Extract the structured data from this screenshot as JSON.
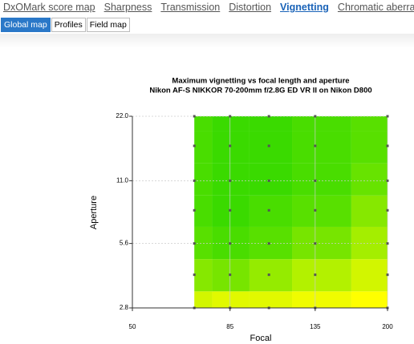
{
  "nav": {
    "tabs": [
      "DxOMark score map",
      "Sharpness",
      "Transmission",
      "Distortion",
      "Vignetting",
      "Chromatic aberration"
    ],
    "active_tab": 4,
    "subtabs": [
      "Global map",
      "Profiles",
      "Field map"
    ],
    "active_subtab": 0
  },
  "chart_data": {
    "type": "heatmap",
    "title": "Maximum vignetting vs focal length and aperture",
    "subtitle": "Nikon AF-S NIKKOR 70-200mm f/2.8G ED VR II on Nikon D800",
    "x_label": "Focal",
    "y_label": "Aperture",
    "x": [
      70,
      85,
      105,
      135,
      200
    ],
    "y": [
      2.8,
      4,
      5.6,
      8,
      11,
      16,
      22
    ],
    "z": [
      [
        1.3,
        1.4,
        1.4,
        1.5,
        1.6
      ],
      [
        0.8,
        0.7,
        0.9,
        1.1,
        1.3
      ],
      [
        0.5,
        0.4,
        0.5,
        0.7,
        1.0
      ],
      [
        0.4,
        0.3,
        0.4,
        0.5,
        0.8
      ],
      [
        0.4,
        0.3,
        0.3,
        0.4,
        0.6
      ],
      [
        0.4,
        0.3,
        0.3,
        0.4,
        0.5
      ],
      [
        0.4,
        0.3,
        0.3,
        0.4,
        0.5
      ]
    ],
    "zlim": [
      0.3,
      1.6
    ],
    "colormap": [
      "#3ada00",
      "#ffff00"
    ],
    "xlim": [
      50,
      200
    ],
    "xticks": [
      50,
      85,
      135,
      200
    ],
    "xscale": "log",
    "ylim": [
      2.8,
      22
    ],
    "yticks": [
      2.8,
      5.6,
      {
        "value": 11,
        "label": "11.0"
      },
      {
        "value": 22,
        "label": "22.0"
      }
    ],
    "yscale": "log",
    "grid": true,
    "marker_color": "#555555"
  }
}
